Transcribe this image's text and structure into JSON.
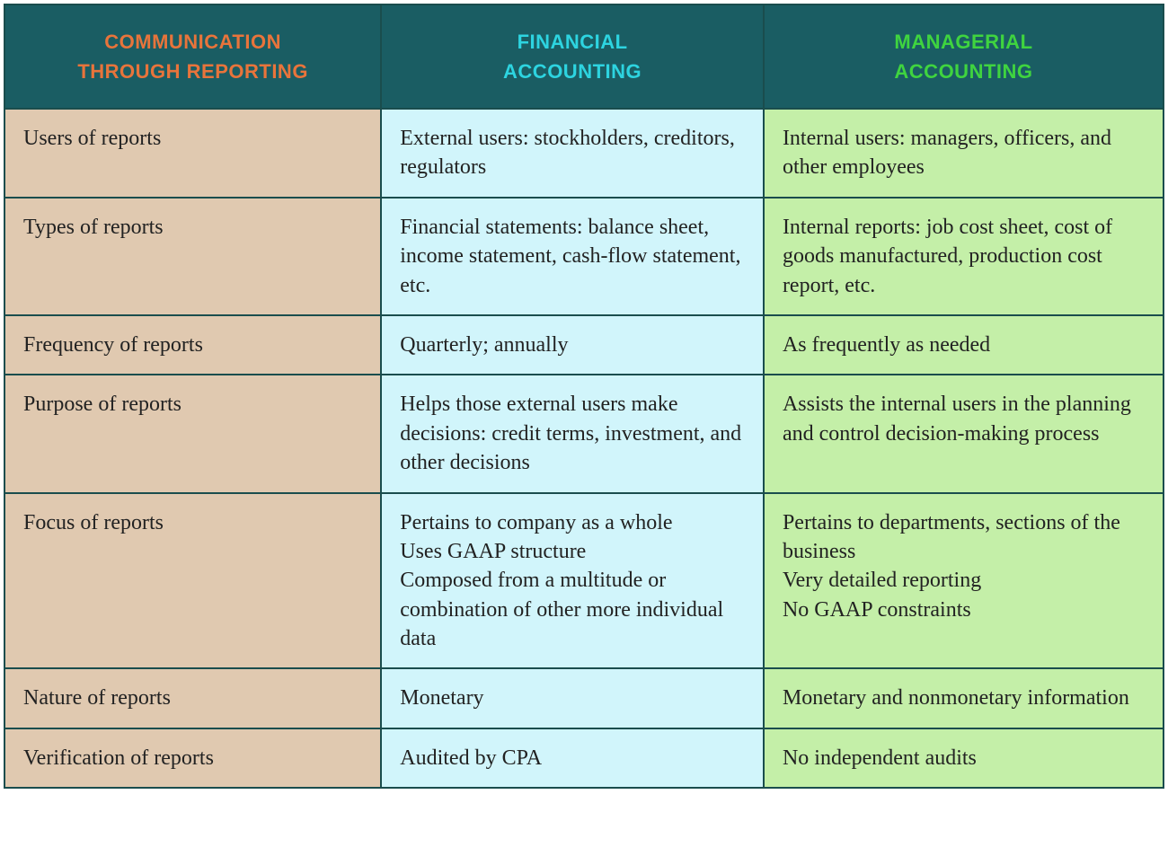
{
  "table": {
    "type": "table",
    "border_color": "#1a4d4d",
    "header_bg": "#1a5d63",
    "columns": [
      {
        "key": "label",
        "header_line1": "COMMUNICATION",
        "header_line2": "THROUGH REPORTING",
        "header_text_color": "#e8743b",
        "body_bg": "#e0c9b0",
        "body_text_color": "#222222"
      },
      {
        "key": "financial",
        "header_line1": "FINANCIAL",
        "header_line2": "ACCOUNTING",
        "header_text_color": "#2dd4e0",
        "body_bg": "#d1f5fb",
        "body_text_color": "#222222"
      },
      {
        "key": "managerial",
        "header_line1": "MANAGERIAL",
        "header_line2": "ACCOUNTING",
        "header_text_color": "#3fd43f",
        "body_bg": "#c4efa8",
        "body_text_color": "#222222"
      }
    ],
    "rows": [
      {
        "label": "Users of reports",
        "financial": "External users: stockholders, creditors, regulators",
        "managerial": "Internal users: managers, officers, and other employees"
      },
      {
        "label": "Types of reports",
        "financial": "Financial statements: balance sheet, income statement, cash-flow statement, etc.",
        "managerial": "Internal reports: job cost sheet, cost of goods manufactured, production cost report, etc."
      },
      {
        "label": "Frequency of reports",
        "financial": "Quarterly; annually",
        "managerial": "As frequently as needed"
      },
      {
        "label": "Purpose of reports",
        "financial": "Helps those external users make decisions: credit terms, investment, and other decisions",
        "managerial": "Assists the internal users in the planning and control decision-making process"
      },
      {
        "label": "Focus of reports",
        "financial": "Pertains to company as a whole\nUses GAAP structure\nComposed from a multitude or combination of other more individual data",
        "managerial": "Pertains to departments, sections of the business\nVery detailed reporting\nNo GAAP constraints"
      },
      {
        "label": "Nature of reports",
        "financial": "Monetary",
        "managerial": "Monetary and nonmonetary information"
      },
      {
        "label": "Verification of reports",
        "financial": "Audited by CPA",
        "managerial": "No independent audits"
      }
    ]
  }
}
